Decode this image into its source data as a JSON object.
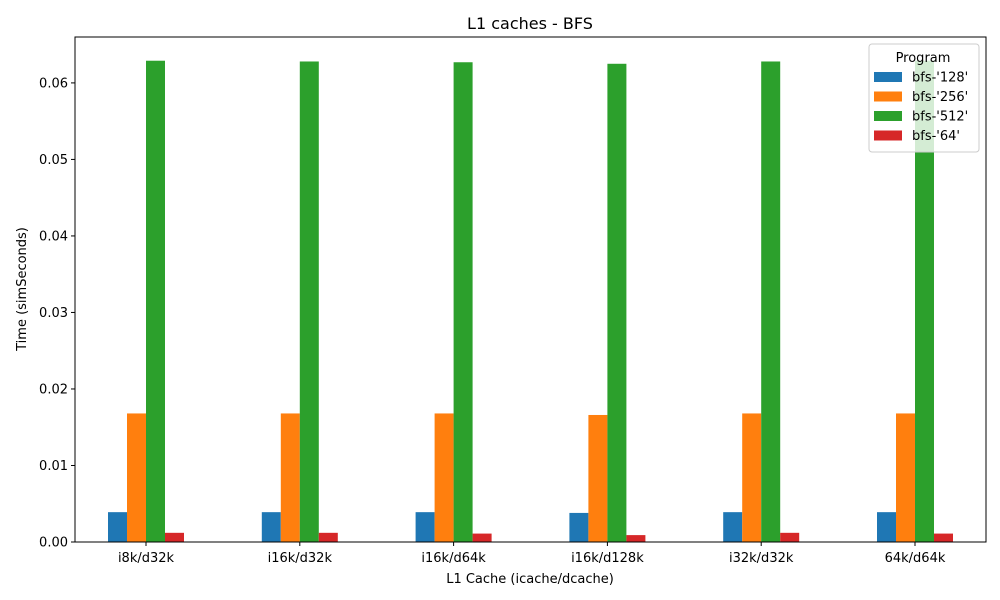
{
  "chart_data": {
    "type": "bar",
    "title": "L1 caches - BFS",
    "xlabel": "L1 Cache (icache/dcache)",
    "ylabel": "Time (simSeconds)",
    "categories": [
      "i8k/d32k",
      "i16k/d32k",
      "i16k/d64k",
      "i16k/d128k",
      "i32k/d32k",
      "64k/d64k"
    ],
    "ylim": [
      0,
      0.066
    ],
    "yticks": [
      0.0,
      0.01,
      0.02,
      0.03,
      0.04,
      0.05,
      0.06
    ],
    "ytick_labels": [
      "0.00",
      "0.01",
      "0.02",
      "0.03",
      "0.04",
      "0.05",
      "0.06"
    ],
    "grid": false,
    "legend": {
      "title": "Program",
      "placement": "top-right"
    },
    "series": [
      {
        "name": "bfs-'128'",
        "color": "#1f77b4",
        "values": [
          0.0039,
          0.0039,
          0.0039,
          0.0038,
          0.0039,
          0.0039
        ]
      },
      {
        "name": "bfs-'256'",
        "color": "#ff7f0e",
        "values": [
          0.0168,
          0.0168,
          0.0168,
          0.0166,
          0.0168,
          0.0168
        ]
      },
      {
        "name": "bfs-'512'",
        "color": "#2ca02c",
        "values": [
          0.0629,
          0.0628,
          0.0627,
          0.0625,
          0.0628,
          0.0629
        ]
      },
      {
        "name": "bfs-'64'",
        "color": "#d62728",
        "values": [
          0.0012,
          0.0012,
          0.0011,
          0.0009,
          0.0012,
          0.0011
        ]
      }
    ]
  }
}
